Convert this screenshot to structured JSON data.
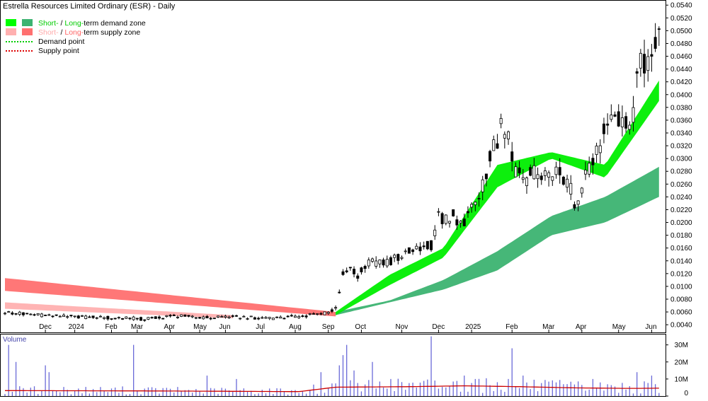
{
  "chart_data": {
    "type": "candlestick",
    "title": "Estrella Resources Limited Ordinary (ESR) - Daily",
    "legend": {
      "items": [
        {
          "label_parts": [
            {
              "text": "Short-",
              "color": "#00cc00"
            },
            {
              "text": " / ",
              "color": "#000000"
            },
            {
              "text": "Long-",
              "color": "#00cc00"
            },
            {
              "text": "term demand zone",
              "color": "#000000"
            }
          ],
          "swatches": [
            "#00ff00",
            "#3cb371"
          ]
        },
        {
          "label_parts": [
            {
              "text": "Short-",
              "color": "#ffaaaa"
            },
            {
              "text": " / ",
              "color": "#000000"
            },
            {
              "text": "Long-",
              "color": "#ff6666"
            },
            {
              "text": "term supply zone",
              "color": "#000000"
            }
          ],
          "swatches": [
            "#ffb0b0",
            "#ff7070"
          ]
        },
        {
          "label_parts": [
            {
              "text": "Demand point",
              "color": "#000000"
            }
          ],
          "line_color": "#00cc00"
        },
        {
          "label_parts": [
            {
              "text": "Supply point",
              "color": "#000000"
            }
          ],
          "line_color": "#dd0000"
        }
      ]
    },
    "price_axis": {
      "min": 0.0028,
      "max": 0.0548,
      "ticks": [
        "0.0540",
        "0.0520",
        "0.0500",
        "0.0480",
        "0.0460",
        "0.0440",
        "0.0420",
        "0.0400",
        "0.0380",
        "0.0360",
        "0.0340",
        "0.0320",
        "0.0300",
        "0.0280",
        "0.0260",
        "0.0240",
        "0.0220",
        "0.0200",
        "0.0180",
        "0.0160",
        "0.0140",
        "0.0120",
        "0.0100",
        "0.0080",
        "0.0060",
        "0.0040"
      ]
    },
    "time_axis": {
      "labels": [
        {
          "text": "Dec",
          "bar": 11
        },
        {
          "text": "2024",
          "bar": 19
        },
        {
          "text": "Feb",
          "bar": 29
        },
        {
          "text": "Mar",
          "bar": 36
        },
        {
          "text": "Apr",
          "bar": 45
        },
        {
          "text": "May",
          "bar": 53
        },
        {
          "text": "Jun",
          "bar": 60
        },
        {
          "text": "Jul",
          "bar": 70
        },
        {
          "text": "Aug",
          "bar": 79
        },
        {
          "text": "Sep",
          "bar": 88
        },
        {
          "text": "Oct",
          "bar": 97
        },
        {
          "text": "Nov",
          "bar": 108
        },
        {
          "text": "Dec",
          "bar": 118
        },
        {
          "text": "2025",
          "bar": 127
        },
        {
          "text": "Feb",
          "bar": 138
        },
        {
          "text": "Mar",
          "bar": 148
        },
        {
          "text": "Apr",
          "bar": 157
        },
        {
          "text": "May",
          "bar": 167
        },
        {
          "text": "Jun",
          "bar": 176
        }
      ]
    },
    "volume_axis": {
      "label": "Volume",
      "max": 34,
      "ticks": [
        {
          "text": "30M",
          "v": 30
        },
        {
          "text": "20M",
          "v": 20
        },
        {
          "text": "10M",
          "v": 10
        },
        {
          "text": "0",
          "v": 0
        }
      ]
    },
    "price_points": [
      [
        0,
        0.0059
      ],
      [
        10,
        0.0055
      ],
      [
        20,
        0.0052
      ],
      [
        30,
        0.0051
      ],
      [
        38,
        0.0049
      ],
      [
        46,
        0.0054
      ],
      [
        55,
        0.0051
      ],
      [
        63,
        0.0052
      ],
      [
        72,
        0.005
      ],
      [
        80,
        0.0053
      ],
      [
        84,
        0.0056
      ],
      [
        88,
        0.0058
      ],
      [
        90,
        0.0068
      ],
      [
        92,
        0.0118
      ],
      [
        94,
        0.0128
      ],
      [
        96,
        0.0118
      ],
      [
        98,
        0.0132
      ],
      [
        100,
        0.0138
      ],
      [
        104,
        0.0136
      ],
      [
        108,
        0.015
      ],
      [
        112,
        0.0158
      ],
      [
        116,
        0.0165
      ],
      [
        118,
        0.021
      ],
      [
        120,
        0.0202
      ],
      [
        122,
        0.021
      ],
      [
        124,
        0.0195
      ],
      [
        126,
        0.0212
      ],
      [
        128,
        0.0232
      ],
      [
        130,
        0.0258
      ],
      [
        132,
        0.03
      ],
      [
        134,
        0.033
      ],
      [
        135,
        0.0372
      ],
      [
        136,
        0.0348
      ],
      [
        138,
        0.031
      ],
      [
        139,
        0.0275
      ],
      [
        140,
        0.029
      ],
      [
        142,
        0.0268
      ],
      [
        144,
        0.028
      ],
      [
        146,
        0.0272
      ],
      [
        148,
        0.0275
      ],
      [
        150,
        0.0278
      ],
      [
        152,
        0.0272
      ],
      [
        154,
        0.0252
      ],
      [
        155,
        0.0218
      ],
      [
        156,
        0.0232
      ],
      [
        158,
        0.0275
      ],
      [
        160,
        0.03
      ],
      [
        162,
        0.032
      ],
      [
        163,
        0.0345
      ],
      [
        164,
        0.0365
      ],
      [
        166,
        0.0355
      ],
      [
        168,
        0.0362
      ],
      [
        170,
        0.0338
      ],
      [
        171,
        0.037
      ],
      [
        172,
        0.045
      ],
      [
        173,
        0.0445
      ],
      [
        175,
        0.0455
      ],
      [
        176,
        0.0448
      ],
      [
        177,
        0.047
      ],
      [
        178,
        0.0512
      ]
    ],
    "volume_points": [
      [
        0,
        3.2
      ],
      [
        40,
        3.0
      ],
      [
        80,
        2.6
      ],
      [
        90,
        5.2
      ],
      [
        110,
        5.5
      ],
      [
        125,
        6.0
      ],
      [
        140,
        5.5
      ],
      [
        155,
        4.8
      ],
      [
        170,
        4.5
      ],
      [
        178,
        4.6
      ]
    ],
    "volume_spikes": [
      [
        1,
        30
      ],
      [
        3,
        20
      ],
      [
        11,
        18
      ],
      [
        12,
        14
      ],
      [
        35,
        30
      ],
      [
        55,
        12
      ],
      [
        63,
        10
      ],
      [
        86,
        14
      ],
      [
        91,
        18
      ],
      [
        92,
        24
      ],
      [
        93,
        30
      ],
      [
        95,
        15
      ],
      [
        100,
        20
      ],
      [
        105,
        10
      ],
      [
        116,
        35
      ],
      [
        125,
        12
      ],
      [
        128,
        10
      ],
      [
        137,
        10
      ],
      [
        138,
        28
      ],
      [
        141,
        12
      ],
      [
        150,
        8
      ],
      [
        160,
        10
      ],
      [
        172,
        14
      ],
      [
        176,
        12
      ]
    ],
    "overlays": [
      {
        "name": "Long-term supply zone",
        "color": "#ff7070",
        "from": 0,
        "to": 90,
        "hi": [
          0.0113,
          0.006
        ],
        "lo": [
          0.0093,
          0.0053
        ]
      },
      {
        "name": "Short-term supply zone",
        "color": "#ffb0b0",
        "from": 0,
        "to": 62,
        "hi": [
          0.0075,
          0.0055
        ],
        "lo": [
          0.0065,
          0.005
        ]
      },
      {
        "name": "Long-term demand zone",
        "color": "#3cb371",
        "from": 90,
        "to": 178,
        "hi": [
          0.006,
          0.0078,
          0.011,
          0.0155,
          0.021,
          0.024,
          0.0287
        ],
        "lo": [
          0.0055,
          0.0075,
          0.0095,
          0.0125,
          0.018,
          0.02,
          0.024
        ]
      },
      {
        "name": "Short-term demand zone",
        "color": "#00ee00",
        "from": 90,
        "to": 178,
        "hi": [
          0.006,
          0.0118,
          0.016,
          0.029,
          0.031,
          0.029,
          0.0422
        ],
        "lo": [
          0.0055,
          0.0102,
          0.0145,
          0.0255,
          0.03,
          0.027,
          0.039
        ]
      }
    ]
  }
}
